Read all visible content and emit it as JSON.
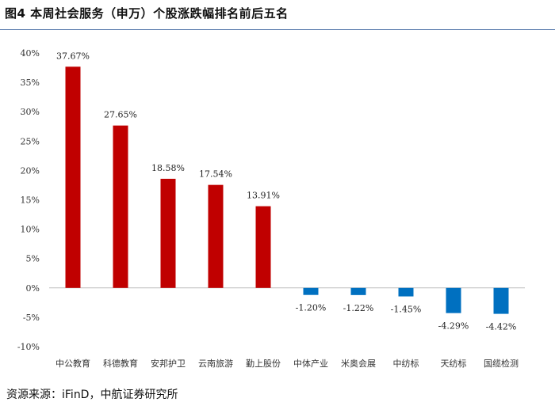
{
  "header": {
    "title": "图4 本周社会服务（申万）个股涨跌幅排名前后五名"
  },
  "footer": {
    "source": "资源来源：iFinD，中航证券研究所"
  },
  "chart_data": {
    "type": "bar",
    "categories": [
      "中公教育",
      "科德教育",
      "安邦护卫",
      "云南旅游",
      "勤上股份",
      "中体产业",
      "米奥会展",
      "中纺标",
      "天纺标",
      "国缆检测"
    ],
    "values": [
      37.67,
      27.65,
      18.58,
      17.54,
      13.91,
      -1.2,
      -1.22,
      -1.45,
      -4.29,
      -4.42
    ],
    "data_labels": [
      "37.67%",
      "27.65%",
      "18.58%",
      "17.54%",
      "13.91%",
      "-1.20%",
      "-1.22%",
      "-1.45%",
      "-4.29%",
      "-4.42%"
    ],
    "ylim": [
      -10,
      40
    ],
    "yticks": [
      40,
      35,
      30,
      25,
      20,
      15,
      10,
      5,
      0,
      -5,
      -10
    ],
    "ytick_labels": [
      "40%",
      "35%",
      "30%",
      "25%",
      "20%",
      "15%",
      "10%",
      "5%",
      "0%",
      "-5%",
      "-10%"
    ],
    "title": "",
    "xlabel": "",
    "ylabel": "",
    "grid": false,
    "colors": {
      "positive": "#c00000",
      "negative": "#0070c0",
      "axis": "#bfbfbf"
    }
  }
}
